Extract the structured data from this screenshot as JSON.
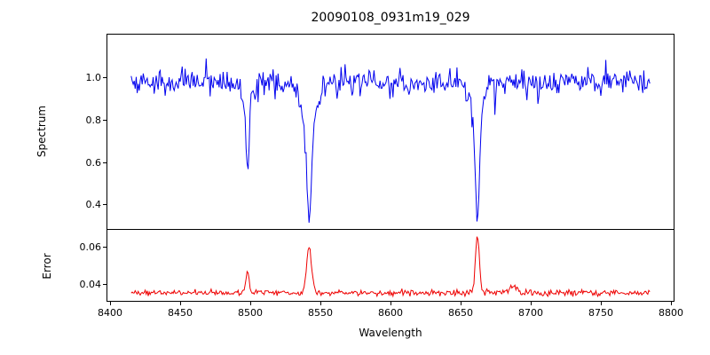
{
  "chart_data": [
    {
      "type": "line",
      "panel": "top",
      "title": "20090108_0931m19_029",
      "ylabel": "Spectrum",
      "series_name": "spectrum",
      "series_color": "#0000ee",
      "x_data_range": [
        8415,
        8785
      ],
      "xlim": [
        8398,
        8802
      ],
      "ylim": [
        0.285,
        1.2
      ],
      "y_tick_labels": [
        "0.4",
        "0.6",
        "0.8",
        "1.0"
      ],
      "y_tick_values": [
        0.4,
        0.6,
        0.8,
        1.0
      ],
      "continuum_level": 0.975,
      "noise_std": 0.03,
      "absorption_lines": [
        {
          "center": 8498,
          "min_value": 0.58,
          "core_sigma": 1.2,
          "wing_sigma": 3.0,
          "wing_frac": 0.2
        },
        {
          "center": 8542,
          "min_value": 0.32,
          "core_sigma": 1.7,
          "wing_sigma": 6.0,
          "wing_frac": 0.28
        },
        {
          "center": 8662,
          "min_value": 0.33,
          "core_sigma": 1.5,
          "wing_sigma": 4.5,
          "wing_frac": 0.22
        }
      ]
    },
    {
      "type": "line",
      "panel": "bottom",
      "ylabel": "Error",
      "xlabel": "Wavelength",
      "series_name": "error",
      "series_color": "#ee0000",
      "x_data_range": [
        8415,
        8785
      ],
      "xlim": [
        8398,
        8802
      ],
      "ylim": [
        0.031,
        0.069
      ],
      "y_tick_labels": [
        "0.04",
        "0.06"
      ],
      "y_tick_values": [
        0.04,
        0.06
      ],
      "x_tick_labels": [
        "8400",
        "8450",
        "8500",
        "8550",
        "8600",
        "8650",
        "8700",
        "8750",
        "8800"
      ],
      "x_tick_values": [
        8400,
        8450,
        8500,
        8550,
        8600,
        8650,
        8700,
        8750,
        8800
      ],
      "baseline": 0.0353,
      "noise_std": 0.0008,
      "error_peaks": [
        {
          "center": 8498,
          "max_value": 0.046,
          "sigma": 1.2
        },
        {
          "center": 8542,
          "max_value": 0.06,
          "sigma": 1.8
        },
        {
          "center": 8662,
          "max_value": 0.066,
          "sigma": 1.4
        },
        {
          "center": 8688,
          "max_value": 0.039,
          "sigma": 2.5
        }
      ]
    }
  ]
}
